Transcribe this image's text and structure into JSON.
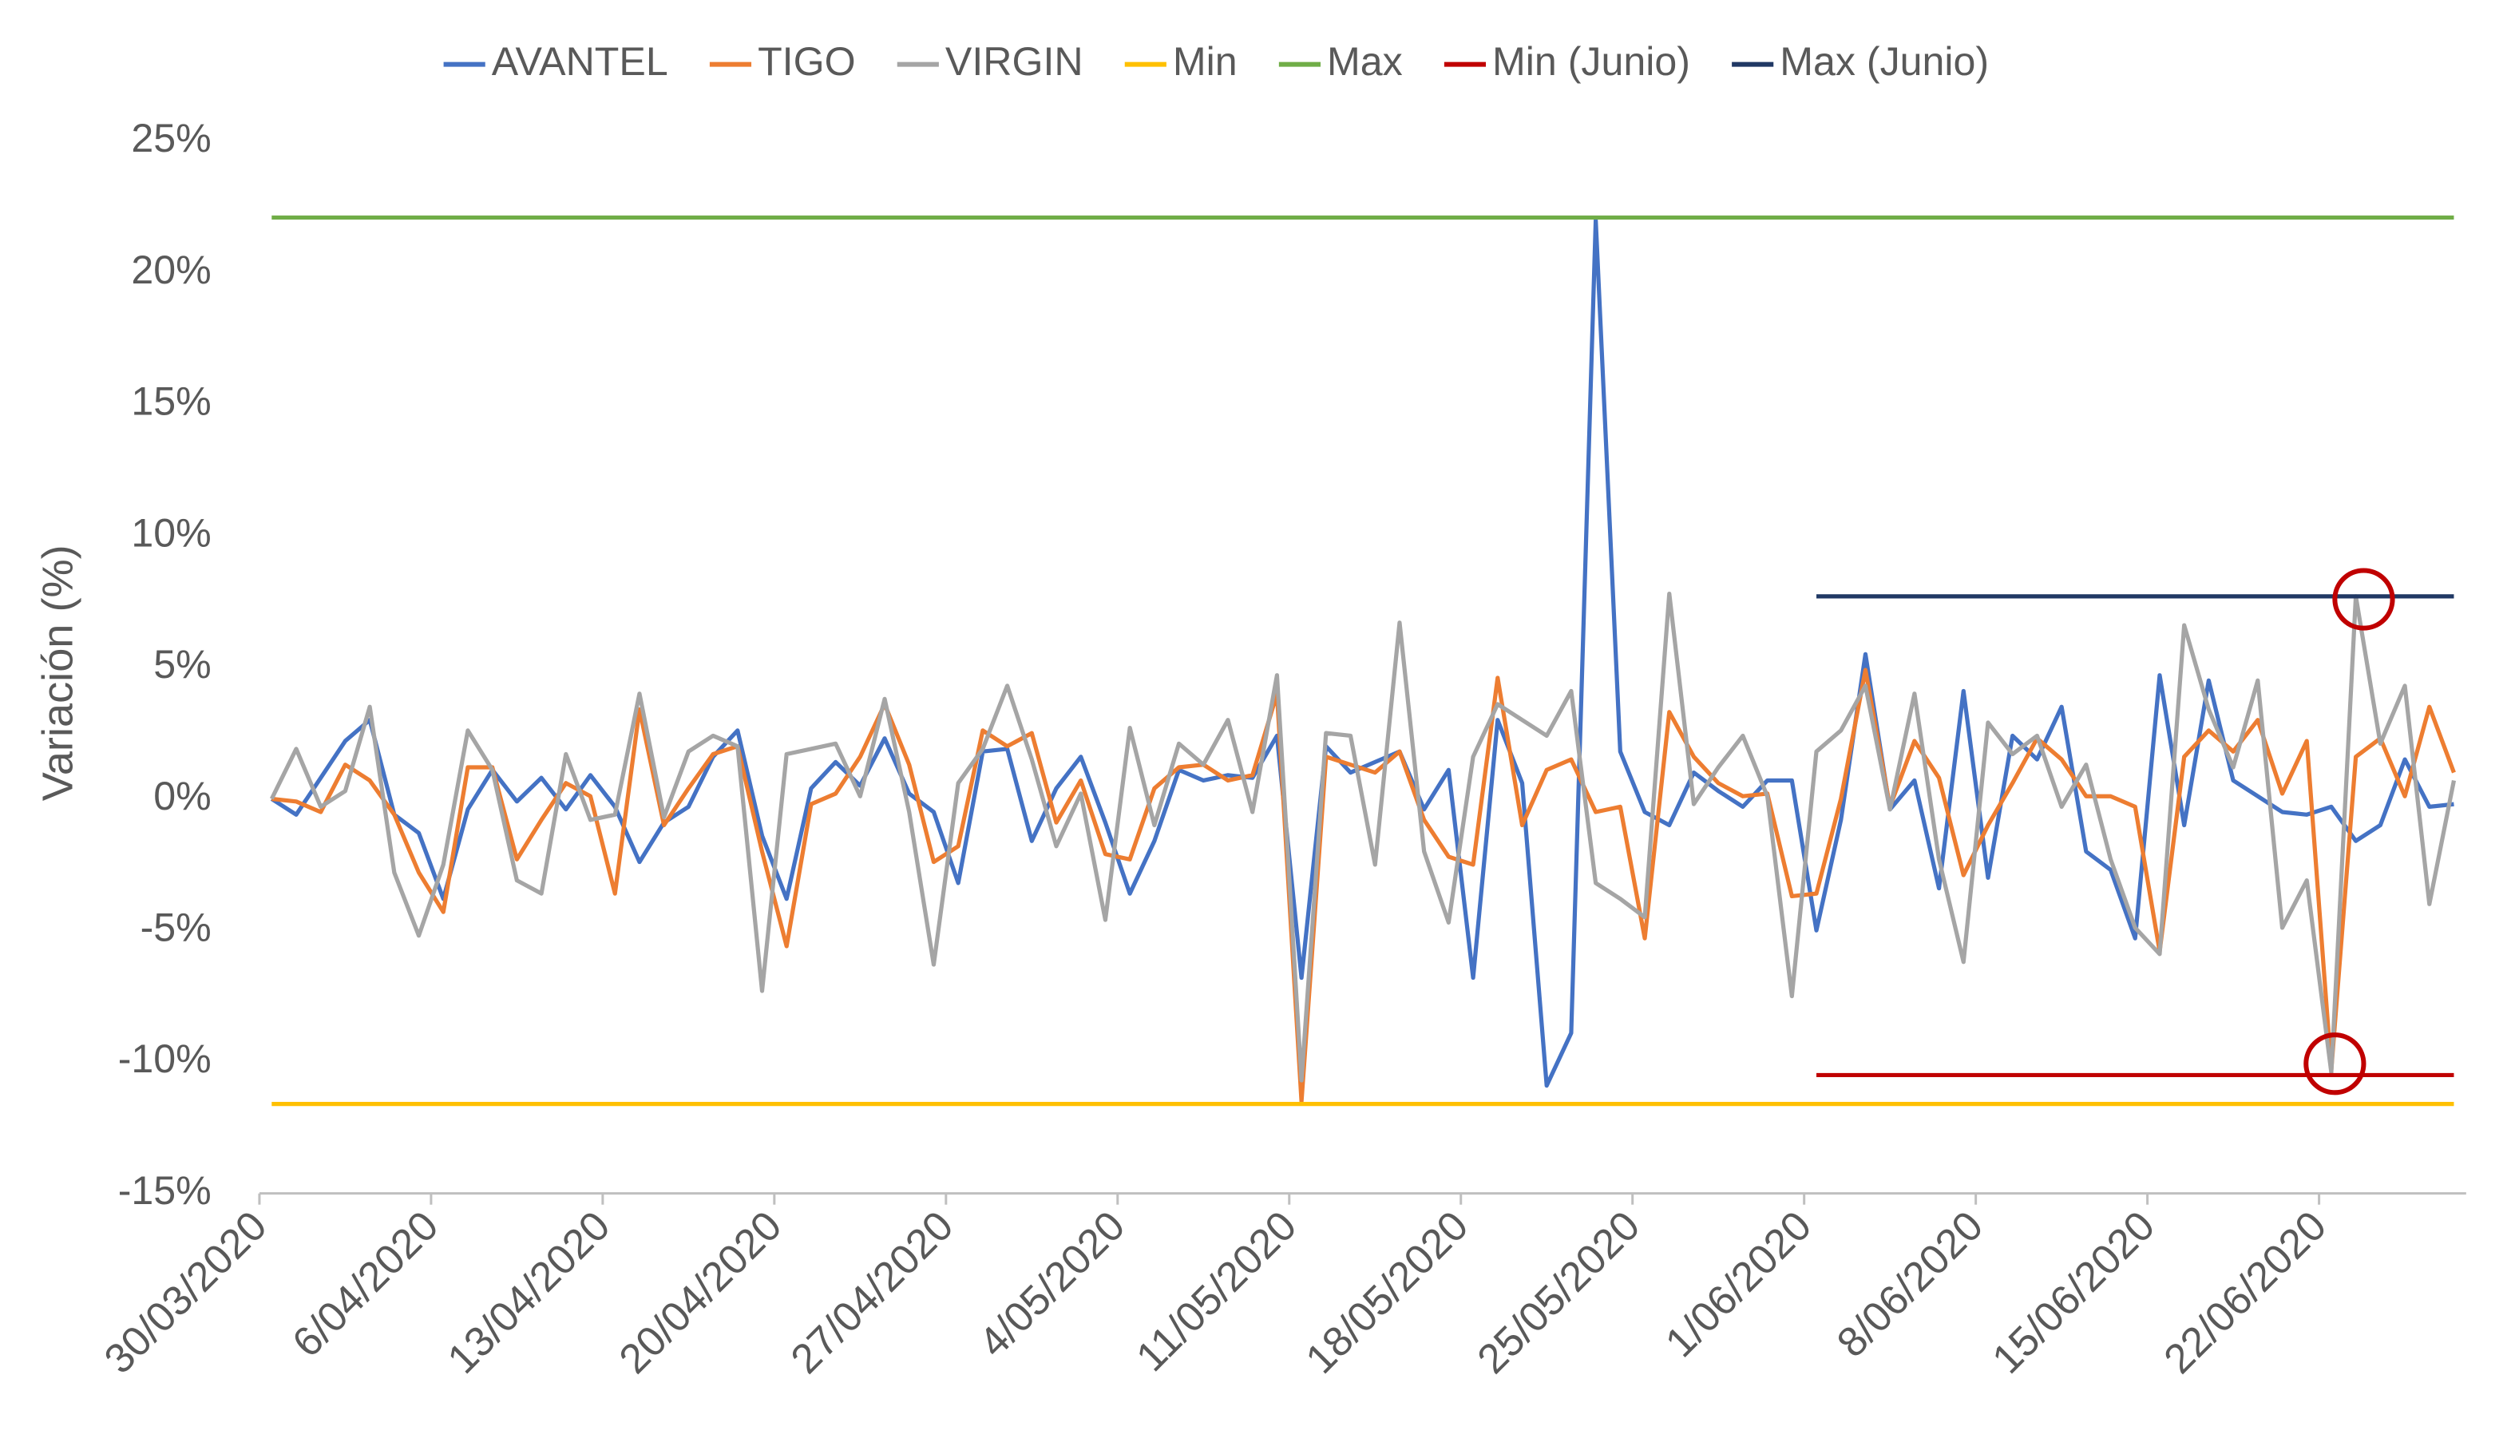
{
  "chart_data": {
    "type": "line",
    "y_label": "Variación (%)",
    "categories": [
      "30/03/2020",
      null,
      null,
      null,
      null,
      null,
      null,
      "6/04/2020",
      null,
      null,
      null,
      null,
      null,
      null,
      "13/04/2020",
      null,
      null,
      null,
      null,
      null,
      null,
      "20/04/2020",
      null,
      null,
      null,
      null,
      null,
      null,
      "27/04/2020",
      null,
      null,
      null,
      null,
      null,
      null,
      "4/05/2020",
      null,
      null,
      null,
      null,
      null,
      null,
      "11/05/2020",
      null,
      null,
      null,
      null,
      null,
      null,
      "18/05/2020",
      null,
      null,
      null,
      null,
      null,
      null,
      "25/05/2020",
      null,
      null,
      null,
      null,
      null,
      null,
      "1/06/2020",
      null,
      null,
      null,
      null,
      null,
      null,
      "8/06/2020",
      null,
      null,
      null,
      null,
      null,
      null,
      "15/06/2020",
      null,
      null,
      null,
      null,
      null,
      null,
      "22/06/2020",
      null,
      null,
      null,
      null,
      null
    ],
    "series": [
      {
        "name": "AVANTEL",
        "color": "#4472c4",
        "values": [
          0,
          -0.6,
          0.8,
          2.2,
          3.0,
          -0.6,
          -1.3,
          -3.8,
          -0.4,
          1.1,
          -0.1,
          0.8,
          -0.4,
          0.9,
          -0.3,
          -2.4,
          -0.9,
          -0.3,
          1.6,
          2.6,
          -1.4,
          -3.8,
          0.4,
          1.4,
          0.5,
          2.3,
          0.2,
          -0.5,
          -3.2,
          1.8,
          1.9,
          -1.6,
          0.4,
          1.6,
          -0.9,
          -3.6,
          -1.6,
          1.1,
          0.7,
          0.9,
          0.8,
          2.4,
          -6.8,
          2.0,
          1.0,
          1.4,
          1.8,
          -0.4,
          1.1,
          -6.8,
          3.0,
          0.6,
          -10.9,
          -8.9,
          22.0,
          1.8,
          -0.5,
          -1.0,
          1.0,
          0.3,
          -0.3,
          0.7,
          0.7,
          -5.0,
          -0.8,
          5.5,
          -0.4,
          0.7,
          -3.4,
          4.1,
          -3.0,
          2.4,
          1.5,
          3.5,
          -2.0,
          -2.7,
          -5.3,
          4.7,
          -1.0,
          4.5,
          0.7,
          0.1,
          -0.5,
          -0.6,
          -0.3,
          -1.6,
          -1.0,
          1.5,
          -0.3,
          -0.2
        ]
      },
      {
        "name": "TIGO",
        "color": "#ed7d31",
        "values": [
          0,
          -0.1,
          -0.5,
          1.3,
          0.7,
          -0.6,
          -2.8,
          -4.3,
          1.2,
          1.2,
          -2.3,
          -0.8,
          0.6,
          0.1,
          -3.6,
          3.4,
          -1.0,
          0.4,
          1.7,
          2.0,
          -2.0,
          -5.6,
          -0.2,
          0.2,
          1.6,
          3.6,
          1.3,
          -2.4,
          -1.8,
          2.6,
          2.0,
          2.5,
          -0.9,
          0.7,
          -2.1,
          -2.3,
          0.4,
          1.2,
          1.3,
          0.7,
          0.9,
          4.0,
          -11.5,
          1.6,
          1.3,
          1.0,
          1.8,
          -0.8,
          -2.2,
          -2.5,
          4.6,
          -1.0,
          1.1,
          1.5,
          -0.5,
          -0.3,
          -5.3,
          3.3,
          1.6,
          0.6,
          0.1,
          0.2,
          -3.7,
          -3.6,
          0.0,
          4.9,
          -0.3,
          2.2,
          0.8,
          -2.9,
          -1.0,
          0.6,
          2.3,
          1.5,
          0.1,
          0.1,
          -0.3,
          -5.8,
          1.6,
          2.6,
          1.8,
          3.0,
          0.2,
          2.2,
          -10.3,
          1.6,
          2.3,
          0.1,
          3.5,
          1.0
        ]
      },
      {
        "name": "VIRGIN",
        "color": "#a5a5a5",
        "values": [
          0,
          1.9,
          -0.3,
          0.3,
          3.5,
          -2.8,
          -5.2,
          -2.5,
          2.6,
          1.1,
          -3.1,
          -3.6,
          1.7,
          -0.8,
          -0.6,
          4.0,
          -0.7,
          1.8,
          2.4,
          2.0,
          -7.3,
          1.7,
          1.9,
          2.1,
          0.1,
          3.8,
          -0.5,
          -6.3,
          0.6,
          1.9,
          4.3,
          1.5,
          -1.8,
          0.2,
          -4.6,
          2.7,
          -1.0,
          2.1,
          1.3,
          3.0,
          -0.5,
          4.7,
          -10.7,
          2.5,
          2.4,
          -2.5,
          6.7,
          -2.0,
          -4.7,
          1.6,
          3.6,
          3.0,
          2.4,
          4.1,
          -3.2,
          -3.8,
          -4.5,
          7.8,
          -0.2,
          1.2,
          2.4,
          0.1,
          -7.5,
          1.8,
          2.6,
          4.3,
          -0.4,
          4.0,
          -2.3,
          -6.2,
          2.9,
          1.7,
          2.4,
          -0.3,
          1.3,
          -2.3,
          -4.9,
          -5.9,
          6.6,
          3.4,
          1.2,
          4.5,
          -4.9,
          -3.1,
          -10.4,
          7.7,
          2.1,
          4.3,
          -4.0,
          0.7
        ]
      },
      {
        "name": "Min",
        "color": "#ffc000",
        "values": [
          -11.6,
          -11.6,
          -11.6,
          -11.6,
          -11.6,
          -11.6,
          -11.6,
          -11.6,
          -11.6,
          -11.6,
          -11.6,
          -11.6,
          -11.6,
          -11.6,
          -11.6,
          -11.6,
          -11.6,
          -11.6,
          -11.6,
          -11.6,
          -11.6,
          -11.6,
          -11.6,
          -11.6,
          -11.6,
          -11.6,
          -11.6,
          -11.6,
          -11.6,
          -11.6,
          -11.6,
          -11.6,
          -11.6,
          -11.6,
          -11.6,
          -11.6,
          -11.6,
          -11.6,
          -11.6,
          -11.6,
          -11.6,
          -11.6,
          -11.6,
          -11.6,
          -11.6,
          -11.6,
          -11.6,
          -11.6,
          -11.6,
          -11.6,
          -11.6,
          -11.6,
          -11.6,
          -11.6,
          -11.6,
          -11.6,
          -11.6,
          -11.6,
          -11.6,
          -11.6,
          -11.6,
          -11.6,
          -11.6,
          -11.6,
          -11.6,
          -11.6,
          -11.6,
          -11.6,
          -11.6,
          -11.6,
          -11.6,
          -11.6,
          -11.6,
          -11.6,
          -11.6,
          -11.6,
          -11.6,
          -11.6,
          -11.6,
          -11.6,
          -11.6,
          -11.6,
          -11.6,
          -11.6,
          -11.6,
          -11.6,
          -11.6,
          -11.6,
          -11.6,
          -11.6
        ]
      },
      {
        "name": "Max",
        "color": "#70ad47",
        "values": [
          22.1,
          22.1,
          22.1,
          22.1,
          22.1,
          22.1,
          22.1,
          22.1,
          22.1,
          22.1,
          22.1,
          22.1,
          22.1,
          22.1,
          22.1,
          22.1,
          22.1,
          22.1,
          22.1,
          22.1,
          22.1,
          22.1,
          22.1,
          22.1,
          22.1,
          22.1,
          22.1,
          22.1,
          22.1,
          22.1,
          22.1,
          22.1,
          22.1,
          22.1,
          22.1,
          22.1,
          22.1,
          22.1,
          22.1,
          22.1,
          22.1,
          22.1,
          22.1,
          22.1,
          22.1,
          22.1,
          22.1,
          22.1,
          22.1,
          22.1,
          22.1,
          22.1,
          22.1,
          22.1,
          22.1,
          22.1,
          22.1,
          22.1,
          22.1,
          22.1,
          22.1,
          22.1,
          22.1,
          22.1,
          22.1,
          22.1,
          22.1,
          22.1,
          22.1,
          22.1,
          22.1,
          22.1,
          22.1,
          22.1,
          22.1,
          22.1,
          22.1,
          22.1,
          22.1,
          22.1,
          22.1,
          22.1,
          22.1,
          22.1,
          22.1,
          22.1,
          22.1,
          22.1,
          22.1,
          22.1
        ]
      },
      {
        "name": "Min (Junio)",
        "color": "#c00000",
        "values": [
          null,
          null,
          null,
          null,
          null,
          null,
          null,
          null,
          null,
          null,
          null,
          null,
          null,
          null,
          null,
          null,
          null,
          null,
          null,
          null,
          null,
          null,
          null,
          null,
          null,
          null,
          null,
          null,
          null,
          null,
          null,
          null,
          null,
          null,
          null,
          null,
          null,
          null,
          null,
          null,
          null,
          null,
          null,
          null,
          null,
          null,
          null,
          null,
          null,
          null,
          null,
          null,
          null,
          null,
          null,
          null,
          null,
          null,
          null,
          null,
          null,
          null,
          null,
          -10.5,
          -10.5,
          -10.5,
          -10.5,
          -10.5,
          -10.5,
          -10.5,
          -10.5,
          -10.5,
          -10.5,
          -10.5,
          -10.5,
          -10.5,
          -10.5,
          -10.5,
          -10.5,
          -10.5,
          -10.5,
          -10.5,
          -10.5,
          -10.5,
          -10.5,
          -10.5,
          -10.5,
          -10.5,
          -10.5,
          -10.5
        ]
      },
      {
        "name": "Max (Junio)",
        "color": "#203864",
        "values": [
          null,
          null,
          null,
          null,
          null,
          null,
          null,
          null,
          null,
          null,
          null,
          null,
          null,
          null,
          null,
          null,
          null,
          null,
          null,
          null,
          null,
          null,
          null,
          null,
          null,
          null,
          null,
          null,
          null,
          null,
          null,
          null,
          null,
          null,
          null,
          null,
          null,
          null,
          null,
          null,
          null,
          null,
          null,
          null,
          null,
          null,
          null,
          null,
          null,
          null,
          null,
          null,
          null,
          null,
          null,
          null,
          null,
          null,
          null,
          null,
          null,
          null,
          null,
          7.7,
          7.7,
          7.7,
          7.7,
          7.7,
          7.7,
          7.7,
          7.7,
          7.7,
          7.7,
          7.7,
          7.7,
          7.7,
          7.7,
          7.7,
          7.7,
          7.7,
          7.7,
          7.7,
          7.7,
          7.7,
          7.7,
          7.7,
          7.7,
          7.7,
          7.7,
          7.7
        ]
      }
    ],
    "ylim": [
      -15,
      25
    ],
    "yticks": [
      {
        "value": 25,
        "label": "25%"
      },
      {
        "value": 20,
        "label": "20%"
      },
      {
        "value": 15,
        "label": "15%"
      },
      {
        "value": 10,
        "label": "10%"
      },
      {
        "value": 5,
        "label": "5%"
      },
      {
        "value": 0,
        "label": "0%"
      },
      {
        "value": -5,
        "label": "-5%"
      },
      {
        "value": -10,
        "label": "-10%"
      },
      {
        "value": -15,
        "label": "-15%"
      }
    ],
    "grid": false,
    "legend": "top"
  }
}
